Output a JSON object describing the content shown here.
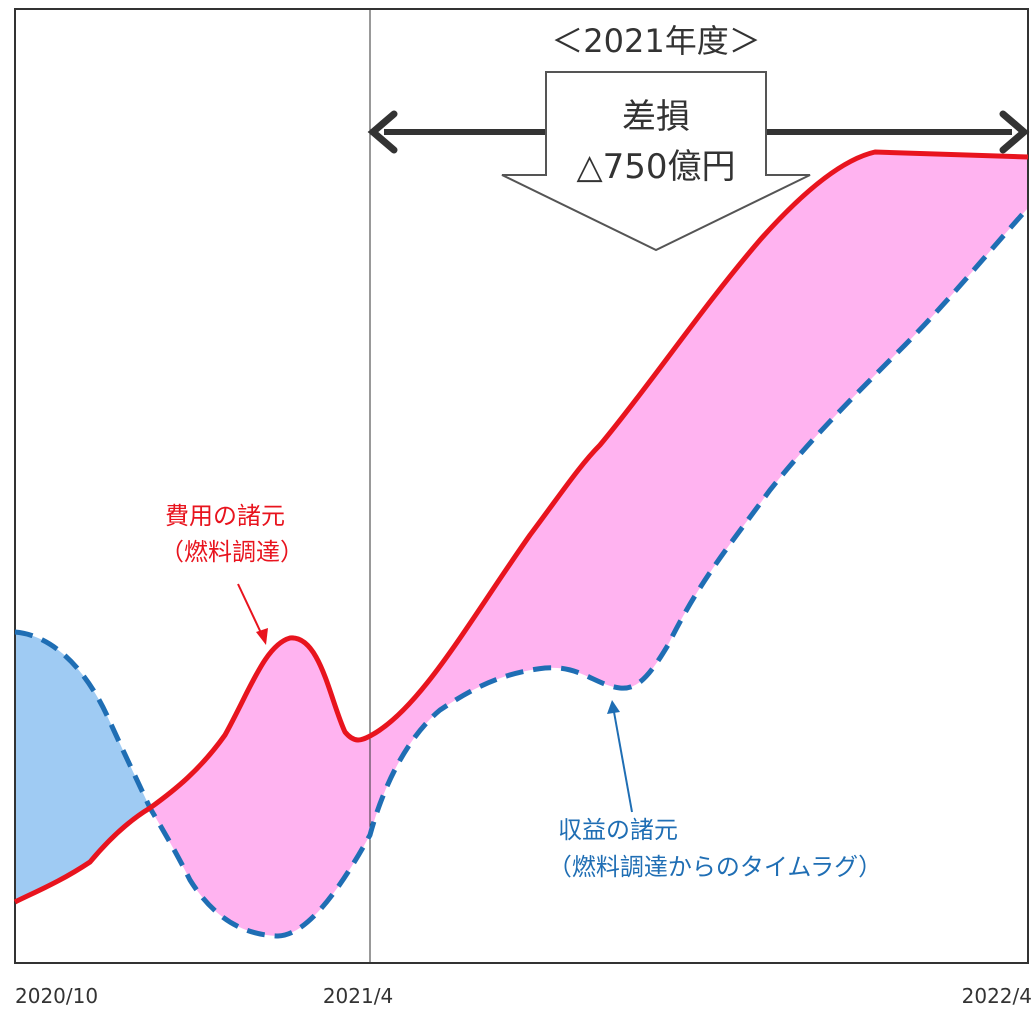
{
  "chart_data": {
    "type": "area",
    "title": "",
    "x_tick_labels": [
      "2020/10",
      "2021/4",
      "2022/4"
    ],
    "fiscal_year_bracket": "＜2021年度＞",
    "loss_box": {
      "line1": "差損",
      "line2": "△750億円"
    },
    "series": [
      {
        "name_line1": "費用の諸元",
        "name_line2": "（燃料調達）",
        "style": "solid",
        "color": "#e8141e"
      },
      {
        "name_line1": "収益の諸元",
        "name_line2": "（燃料調達からのタイムラグ）",
        "style": "dashed",
        "color": "#1f6eb4"
      }
    ],
    "fills": {
      "revenue_exceeds_cost": "#9fcbf3",
      "cost_exceeds_revenue": "#ffb3f0"
    },
    "colors": {
      "arrow": "#333333",
      "frame": "#333333"
    }
  }
}
